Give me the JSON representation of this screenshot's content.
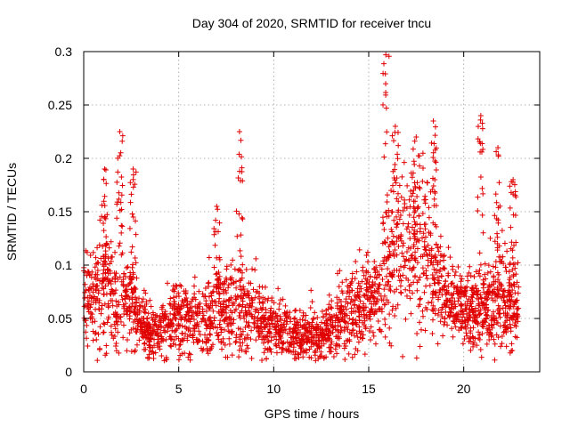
{
  "chart_data": {
    "type": "scatter",
    "title": "Day 304 of 2020, SRMTID for receiver tncu",
    "xlabel": "GPS time / hours",
    "ylabel": "SRMTID / TECUs",
    "xlim": [
      0,
      24
    ],
    "ylim": [
      0,
      0.3
    ],
    "xticks": [
      0,
      5,
      10,
      15,
      20
    ],
    "xtick_labels": [
      "0",
      "5",
      "10",
      "15",
      "20"
    ],
    "yticks": [
      0,
      0.05,
      0.1,
      0.15,
      0.2,
      0.25,
      0.3
    ],
    "ytick_labels": [
      "0",
      "0.05",
      "0.1",
      "0.15",
      "0.2",
      "0.25",
      "0.3"
    ],
    "grid": true,
    "marker": "+",
    "marker_color": "#e00000",
    "n_points": 2600,
    "time_range_hours": [
      0,
      22.9
    ],
    "baseline_profile": {
      "hours": [
        0,
        1,
        2,
        3,
        3.5,
        4,
        5,
        6,
        7,
        8,
        9,
        10,
        11,
        12,
        12.5,
        13,
        14,
        15,
        15.5,
        16,
        17,
        18,
        18.5,
        19,
        20,
        21,
        22,
        22.9
      ],
      "median": [
        0.07,
        0.075,
        0.07,
        0.05,
        0.035,
        0.04,
        0.05,
        0.05,
        0.055,
        0.06,
        0.05,
        0.04,
        0.035,
        0.035,
        0.03,
        0.045,
        0.055,
        0.065,
        0.07,
        0.1,
        0.12,
        0.11,
        0.09,
        0.07,
        0.06,
        0.06,
        0.07,
        0.06
      ],
      "spread": [
        0.02,
        0.03,
        0.025,
        0.015,
        0.012,
        0.015,
        0.02,
        0.018,
        0.02,
        0.022,
        0.018,
        0.015,
        0.012,
        0.012,
        0.01,
        0.015,
        0.018,
        0.02,
        0.022,
        0.035,
        0.04,
        0.035,
        0.03,
        0.018,
        0.015,
        0.02,
        0.025,
        0.015
      ]
    },
    "spike_clusters": [
      {
        "x": 1.1,
        "ymax": 0.19
      },
      {
        "x": 1.9,
        "ymax": 0.225
      },
      {
        "x": 2.6,
        "ymax": 0.19
      },
      {
        "x": 7.0,
        "ymax": 0.155
      },
      {
        "x": 8.2,
        "ymax": 0.225
      },
      {
        "x": 15.9,
        "ymax": 0.297
      },
      {
        "x": 16.4,
        "ymax": 0.23
      },
      {
        "x": 17.5,
        "ymax": 0.22
      },
      {
        "x": 18.4,
        "ymax": 0.235
      },
      {
        "x": 20.9,
        "ymax": 0.24
      },
      {
        "x": 21.8,
        "ymax": 0.21
      },
      {
        "x": 22.6,
        "ymax": 0.18
      }
    ]
  }
}
